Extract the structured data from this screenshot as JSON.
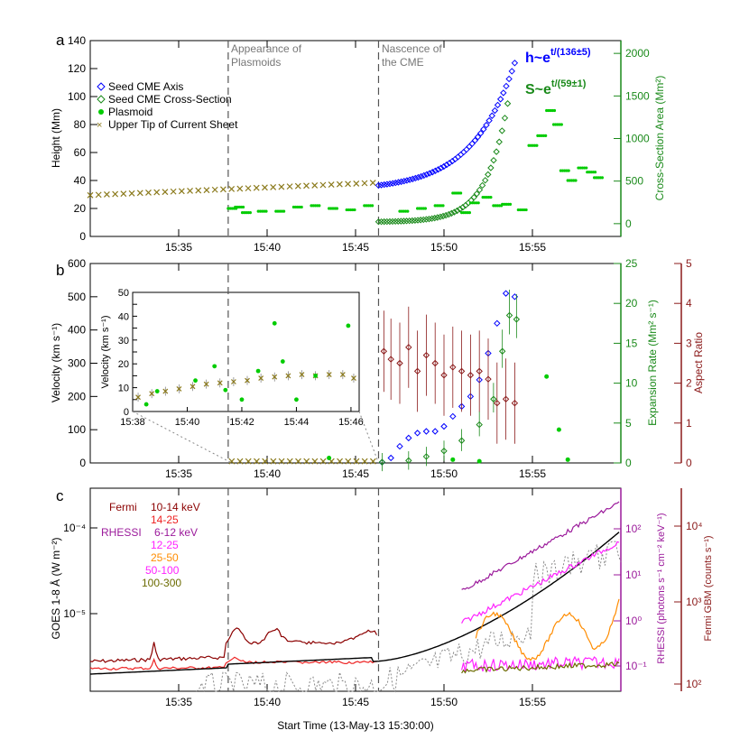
{
  "colors": {
    "axis_blue": "#0000ff",
    "green": "#00cc00",
    "green_dark": "#1a8a1a",
    "olive": "#8b7a1c",
    "maroon": "#8b1a1a",
    "fermi_low": "#8b0000",
    "fermi_high": "#ee2222",
    "rhessi_purple": "#9b1a9b",
    "rhessi_magenta": "#ff22ff",
    "orange": "#ff8c00",
    "olive2": "#6b6b00",
    "gray": "#888888"
  },
  "panel_labels": {
    "a": "a",
    "b": "b",
    "c": "c"
  },
  "chart_data": [
    {
      "panel": "a",
      "type": "scatter",
      "xlabel": "",
      "ylabel": "Height (Mm)",
      "y2label": "Cross-Section Area (Mm²)",
      "ylim": [
        0,
        140
      ],
      "y2lim": [
        -150,
        2150
      ],
      "xlim_minutes": [
        30,
        60
      ],
      "x_ticks": [
        "15:35",
        "15:40",
        "15:45",
        "15:50",
        "15:55"
      ],
      "y_ticks": [
        0,
        20,
        40,
        60,
        80,
        100,
        120,
        140
      ],
      "y2_ticks": [
        0,
        500,
        1000,
        1500,
        2000
      ],
      "vlines_minutes": [
        37.8,
        46.3
      ],
      "annotations": [
        "Appearance of",
        "Plasmoids",
        "Nascence of",
        "the CME"
      ],
      "fit_labels": {
        "h_base": "h~e",
        "h_exp": "t/(136±5)",
        "s_base": "S~e",
        "s_exp": "t/(59±1)"
      },
      "legend": [
        "Seed CME Axis",
        "Seed CME Cross-Section",
        "Plasmoid",
        "Upper Tip of Current Sheet"
      ],
      "series": [
        {
          "name": "Seed CME Axis",
          "x_start": 46.3,
          "x_end": 54.0,
          "y_start": 36.5,
          "y_end": 124,
          "exp_k": 3.2
        },
        {
          "name": "Seed CME Cross-Section",
          "x_start": 46.3,
          "x_end": 53.6,
          "y_start": 10.5,
          "y_end": 95,
          "exp_k": 6.0
        },
        {
          "name": "Plasmoid",
          "points": [
            [
              37.8,
              20
            ],
            [
              38.2,
              21
            ],
            [
              38.6,
              17
            ],
            [
              39.5,
              18
            ],
            [
              40.5,
              18
            ],
            [
              41.5,
              21
            ],
            [
              42.5,
              22
            ],
            [
              43.5,
              20
            ],
            [
              44.5,
              19
            ],
            [
              45.5,
              22
            ],
            [
              47.5,
              18
            ],
            [
              48.5,
              20
            ],
            [
              49.5,
              22
            ],
            [
              50.5,
              31
            ],
            [
              51.0,
              17
            ],
            [
              51.5,
              24
            ],
            [
              52.2,
              28
            ],
            [
              52.8,
              22
            ],
            [
              53.3,
              23
            ],
            [
              54.2,
              19
            ],
            [
              54.8,
              65
            ],
            [
              55.3,
              72
            ],
            [
              55.8,
              90
            ],
            [
              56.2,
              80
            ],
            [
              56.6,
              47
            ],
            [
              57.0,
              40
            ],
            [
              57.6,
              49
            ],
            [
              58.1,
              46
            ],
            [
              58.5,
              42
            ]
          ]
        },
        {
          "name": "Upper Tip of Current Sheet",
          "x_start": 30.0,
          "x_end": 46.3,
          "y_start": 29.5,
          "y_end": 38.5
        }
      ]
    },
    {
      "panel": "b",
      "type": "scatter",
      "ylabel": "Velocity (km s⁻¹)",
      "y2label": "Expansion Rate (Mm² s⁻¹)",
      "y3label": "Aspect Ratio",
      "ylim": [
        0,
        600
      ],
      "y2lim": [
        0,
        25
      ],
      "y3lim": [
        0,
        5
      ],
      "x_ticks": [
        "15:35",
        "15:40",
        "15:45",
        "15:50",
        "15:55"
      ],
      "y_ticks": [
        0,
        100,
        200,
        300,
        400,
        500,
        600
      ],
      "y2_ticks": [
        0,
        5,
        10,
        15,
        20,
        25
      ],
      "y3_ticks": [
        0,
        1,
        2,
        3,
        4,
        5
      ],
      "series": [
        {
          "name": "Seed CME Axis velocity",
          "points": [
            [
              46.5,
              2
            ],
            [
              47.0,
              15
            ],
            [
              47.5,
              50
            ],
            [
              48.0,
              75
            ],
            [
              48.5,
              90
            ],
            [
              49.0,
              95
            ],
            [
              49.5,
              95
            ],
            [
              50.0,
              110
            ],
            [
              50.5,
              140
            ],
            [
              51.0,
              170
            ],
            [
              51.5,
              200
            ],
            [
              52.0,
              250
            ],
            [
              52.5,
              330
            ],
            [
              53.0,
              420
            ],
            [
              53.5,
              510
            ],
            [
              54.0,
              500
            ]
          ]
        },
        {
          "name": "Expansion rate",
          "points": [
            [
              46.5,
              0.1
            ],
            [
              48,
              0.3
            ],
            [
              49,
              0.8
            ],
            [
              50,
              1.5
            ],
            [
              51,
              2.8
            ],
            [
              52,
              4.8
            ],
            [
              52.8,
              8
            ],
            [
              53.3,
              14
            ],
            [
              53.7,
              18.5
            ],
            [
              54.1,
              18.0
            ]
          ]
        },
        {
          "name": "Aspect ratio",
          "points": [
            [
              46.6,
              2.8
            ],
            [
              47.0,
              2.6
            ],
            [
              47.5,
              2.5
            ],
            [
              48.0,
              2.9
            ],
            [
              48.5,
              2.3
            ],
            [
              49.0,
              2.7
            ],
            [
              49.5,
              2.5
            ],
            [
              50.0,
              2.2
            ],
            [
              50.5,
              2.4
            ],
            [
              51.0,
              2.3
            ],
            [
              51.5,
              2.2
            ],
            [
              52.0,
              2.3
            ],
            [
              52.5,
              2.1
            ],
            [
              53.0,
              1.5
            ],
            [
              53.5,
              1.6
            ],
            [
              54.0,
              1.5
            ]
          ]
        },
        {
          "name": "Plasmoid velocity",
          "points": [
            [
              43.5,
              15
            ],
            [
              50.5,
              10
            ],
            [
              52.0,
              5
            ],
            [
              55.8,
              260
            ],
            [
              56.5,
              100
            ],
            [
              57.0,
              10
            ]
          ]
        }
      ],
      "inset": {
        "ylabel": "Velocity (km s⁻¹)",
        "x_ticks": [
          "15:38",
          "15:40",
          "15:42",
          "15:44",
          "15:46"
        ],
        "y_ticks": [
          0,
          5,
          10,
          15,
          20,
          25,
          30,
          35,
          40,
          45,
          50
        ],
        "ylim": [
          0,
          50
        ],
        "xlim_minutes": [
          38,
          46.3
        ],
        "current_sheet": [
          [
            38.2,
            6
          ],
          [
            38.7,
            7.5
          ],
          [
            39.2,
            8.5
          ],
          [
            39.7,
            9.5
          ],
          [
            40.2,
            10.5
          ],
          [
            40.7,
            11.5
          ],
          [
            41.2,
            12
          ],
          [
            41.7,
            12.5
          ],
          [
            42.2,
            13
          ],
          [
            42.7,
            14
          ],
          [
            43.2,
            14.5
          ],
          [
            43.7,
            15
          ],
          [
            44.2,
            15.5
          ],
          [
            44.7,
            15
          ],
          [
            45.2,
            15.5
          ],
          [
            45.7,
            15.5
          ],
          [
            46.1,
            14
          ]
        ],
        "plasmoid": [
          [
            38.5,
            3
          ],
          [
            38.9,
            8.5
          ],
          [
            40.3,
            13
          ],
          [
            41.0,
            19
          ],
          [
            41.4,
            9
          ],
          [
            42.0,
            5
          ],
          [
            42.6,
            17
          ],
          [
            43.2,
            37
          ],
          [
            43.5,
            21
          ],
          [
            44.0,
            5
          ],
          [
            44.7,
            15
          ],
          [
            45.9,
            36
          ]
        ]
      }
    },
    {
      "panel": "c",
      "type": "line",
      "xlabel": "Start Time (13-May-13 15:30:00)",
      "ylabel": "GOES 1-8 Å (W m⁻²)",
      "y2label": "RHESSI (photons s⁻¹ cm⁻² keV⁻¹)",
      "y3label": "Fermi GBM (counts s⁻¹)",
      "yscale": "log",
      "x_ticks": [
        "15:35",
        "15:40",
        "15:45",
        "15:50",
        "15:55"
      ],
      "y_ticks": [
        "10⁻⁵",
        "10⁻⁴"
      ],
      "y2_ticks": [
        "10⁻¹",
        "10⁰",
        "10¹",
        "10²"
      ],
      "y3_ticks": [
        "10²",
        "10³",
        "10⁴"
      ],
      "legend": {
        "fermi": "Fermi",
        "fermi_bands": [
          "10-14 keV",
          "14-25"
        ],
        "rhessi": "RHESSI",
        "rhessi_bands": [
          "6-12  keV",
          "12-25",
          "25-50",
          "50-100",
          "100-300"
        ]
      }
    }
  ]
}
